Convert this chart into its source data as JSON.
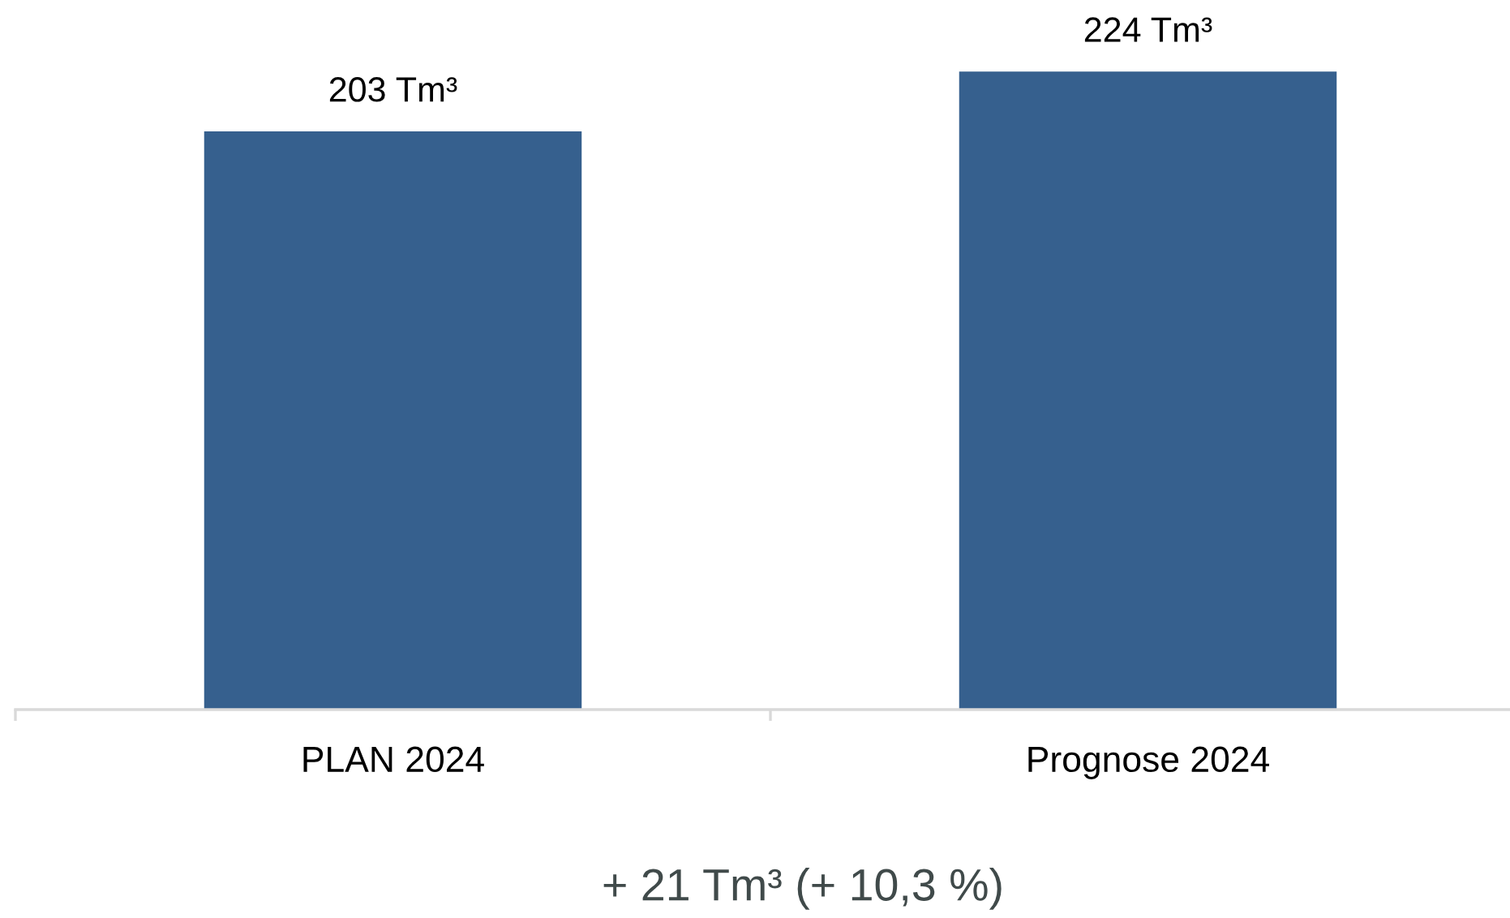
{
  "chart_data": {
    "type": "bar",
    "categories": [
      "PLAN 2024",
      "Prognose 2024"
    ],
    "values": [
      203,
      224
    ],
    "value_labels": [
      "203 Tm³",
      "224 Tm³"
    ],
    "color": "#36608e",
    "annotations": [
      "+ 21 Tm³ (+ 10,3 %)"
    ]
  }
}
